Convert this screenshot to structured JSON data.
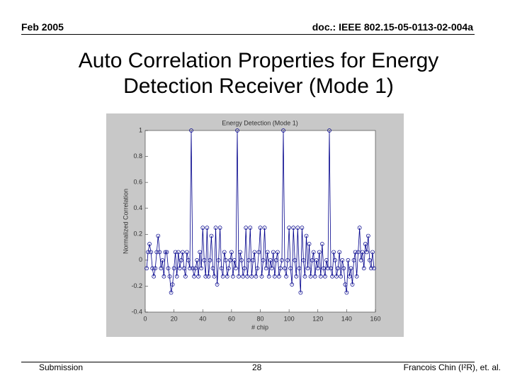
{
  "header": {
    "date": "Feb 2005",
    "doc": "doc.: IEEE 802.15-05-0113-02-004a"
  },
  "slide_title": "Auto Correlation Properties for Energy Detection Receiver (Mode 1)",
  "footer": {
    "left": "Submission",
    "page": "28",
    "right": "Francois Chin (I²R), et. al."
  },
  "chart_data": {
    "type": "line",
    "title": "Energy Detection (Mode 1)",
    "x_label": "# chip",
    "y_label": "Normalized Correlation",
    "x": [
      1,
      2,
      3,
      4,
      5,
      6,
      7,
      8,
      9,
      10,
      11,
      12,
      13,
      14,
      15,
      16,
      17,
      18,
      19,
      20,
      21,
      22,
      23,
      24,
      25,
      26,
      27,
      28,
      29,
      30,
      31,
      32,
      33,
      34,
      35,
      36,
      37,
      38,
      39,
      40,
      41,
      42,
      43,
      44,
      45,
      46,
      47,
      48,
      49,
      50,
      51,
      52,
      53,
      54,
      55,
      56,
      57,
      58,
      59,
      60,
      61,
      62,
      63,
      64,
      65,
      66,
      67,
      68,
      69,
      70,
      71,
      72,
      73,
      74,
      75,
      76,
      77,
      78,
      79,
      80,
      81,
      82,
      83,
      84,
      85,
      86,
      87,
      88,
      89,
      90,
      91,
      92,
      93,
      94,
      95,
      96,
      97,
      98,
      99,
      100,
      101,
      102,
      103,
      104,
      105,
      106,
      107,
      108,
      109,
      110,
      111,
      112,
      113,
      114,
      115,
      116,
      117,
      118,
      119,
      120,
      121,
      122,
      123,
      124,
      125,
      126,
      127,
      128,
      129,
      130,
      131,
      132,
      133,
      134,
      135,
      136,
      137,
      138,
      139,
      140,
      141,
      142,
      143,
      144,
      145,
      146,
      147,
      148,
      149,
      150,
      151,
      152,
      153,
      154,
      155,
      156,
      157,
      158,
      159
    ],
    "series": [
      {
        "name": "correlation",
        "color": "#00008b",
        "values": [
          -0.0625,
          0.0625,
          0.125,
          0.0625,
          -0.0625,
          -0.125,
          -0.0625,
          0.0625,
          0.1875,
          0.0625,
          -0.0625,
          0,
          -0.125,
          0.0625,
          0.0625,
          -0.0625,
          -0.125,
          -0.25,
          -0.1875,
          -0.0625,
          0.0625,
          -0.125,
          0.0625,
          -0.0625,
          0,
          0.0625,
          -0.0625,
          -0.125,
          0.0625,
          0,
          -0.0625,
          1,
          -0.0625,
          -0.125,
          -0.0625,
          0,
          -0.125,
          0.0625,
          -0.0625,
          0.25,
          0,
          -0.125,
          0.25,
          -0.125,
          0,
          0.1875,
          -0.0625,
          -0.125,
          0.25,
          -0.1875,
          0,
          0.25,
          -0.0625,
          -0.125,
          0.0625,
          0,
          -0.125,
          -0.0625,
          0,
          0.0625,
          -0.125,
          0,
          -0.0625,
          1,
          -0.125,
          0.0625,
          0,
          -0.125,
          -0.0625,
          0.25,
          -0.125,
          0,
          0.25,
          -0.125,
          0,
          0.0625,
          -0.125,
          -0.0625,
          0.0625,
          0.25,
          -0.125,
          0,
          0.25,
          -0.0625,
          0.0625,
          -0.125,
          0,
          -0.0625,
          0.0625,
          -0.125,
          0,
          0.0625,
          -0.125,
          -0.0625,
          0,
          1,
          -0.0625,
          -0.125,
          0,
          0.25,
          -0.0625,
          -0.1875,
          0.25,
          0,
          -0.125,
          0.25,
          -0.0625,
          -0.25,
          0.25,
          0,
          -0.125,
          0.1875,
          -0.0625,
          0.125,
          -0.125,
          0,
          0.0625,
          -0.125,
          0,
          -0.0625,
          0.0625,
          -0.125,
          0.125,
          -0.0625,
          -0.125,
          0,
          -0.0625,
          1,
          -0.0625,
          -0.125,
          0.0625,
          0,
          -0.125,
          -0.0625,
          0.0625,
          -0.125,
          0,
          -0.0625,
          -0.1875,
          -0.25,
          0,
          -0.125,
          -0.0625,
          -0.1875,
          0,
          0.0625,
          -0.125,
          0.0625,
          0.25,
          0,
          0.0625,
          -0.0625,
          0.125,
          0.0625,
          0.1875,
          0,
          -0.0625,
          0.0625,
          -0.0625
        ]
      }
    ],
    "xlim": [
      0,
      160
    ],
    "xticks": [
      0,
      20,
      40,
      60,
      80,
      100,
      120,
      140,
      160
    ],
    "ylim": [
      -0.4,
      1
    ],
    "yticks": [
      -0.4,
      -0.2,
      0,
      0.2,
      0.4,
      0.6,
      0.8,
      1
    ],
    "grid": false
  }
}
